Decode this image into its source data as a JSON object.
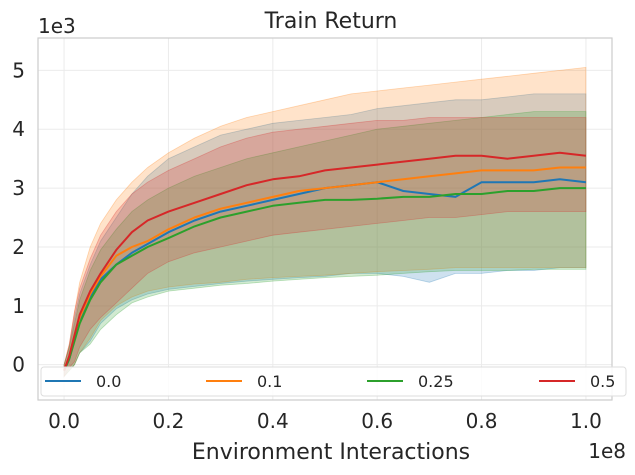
{
  "chart_data": {
    "type": "line",
    "title": "Train Return",
    "xlabel": "Environment Interactions",
    "ylabel": "",
    "x_scale_label": "1e8",
    "y_scale_label": "1e3",
    "xlim": [
      -0.05,
      1.05
    ],
    "ylim": [
      -0.6,
      5.55
    ],
    "xticks": [
      0.0,
      0.2,
      0.4,
      0.6,
      0.8,
      1.0
    ],
    "xtick_labels": [
      "0.0",
      "0.2",
      "0.4",
      "0.6",
      "0.8",
      "1.0"
    ],
    "yticks": [
      0,
      1,
      2,
      3,
      4,
      5
    ],
    "ytick_labels": [
      "0",
      "1",
      "2",
      "3",
      "4",
      "5"
    ],
    "grid": true,
    "legend_position": "bottom",
    "legend_columns": 4,
    "x": [
      0.0,
      0.01,
      0.02,
      0.03,
      0.05,
      0.07,
      0.1,
      0.13,
      0.16,
      0.2,
      0.25,
      0.3,
      0.35,
      0.4,
      0.45,
      0.5,
      0.55,
      0.6,
      0.65,
      0.7,
      0.75,
      0.8,
      0.85,
      0.9,
      0.95,
      1.0
    ],
    "series": [
      {
        "name": "0.0",
        "color": "#1f77b4",
        "values": [
          -0.1,
          0.1,
          0.45,
          0.75,
          1.15,
          1.45,
          1.7,
          1.9,
          2.05,
          2.25,
          2.45,
          2.6,
          2.7,
          2.8,
          2.9,
          3.0,
          3.05,
          3.1,
          2.95,
          2.9,
          2.85,
          3.1,
          3.1,
          3.1,
          3.15,
          3.1
        ],
        "lower": [
          -0.2,
          -0.1,
          0.0,
          0.2,
          0.4,
          0.7,
          0.95,
          1.1,
          1.2,
          1.28,
          1.33,
          1.38,
          1.42,
          1.45,
          1.48,
          1.5,
          1.55,
          1.55,
          1.5,
          1.4,
          1.55,
          1.55,
          1.6,
          1.6,
          1.65,
          1.65
        ],
        "upper": [
          0.0,
          0.3,
          0.8,
          1.2,
          1.7,
          2.1,
          2.5,
          2.9,
          3.2,
          3.5,
          3.7,
          3.9,
          4.0,
          4.1,
          4.15,
          4.2,
          4.25,
          4.35,
          4.4,
          4.45,
          4.5,
          4.5,
          4.55,
          4.6,
          4.6,
          4.6
        ]
      },
      {
        "name": "0.1",
        "color": "#ff7f0e",
        "values": [
          -0.1,
          0.15,
          0.5,
          0.8,
          1.2,
          1.5,
          1.85,
          2.0,
          2.1,
          2.3,
          2.5,
          2.65,
          2.75,
          2.85,
          2.95,
          3.0,
          3.05,
          3.1,
          3.15,
          3.2,
          3.25,
          3.3,
          3.3,
          3.3,
          3.35,
          3.35
        ],
        "lower": [
          -0.2,
          -0.1,
          0.0,
          0.2,
          0.45,
          0.75,
          1.0,
          1.15,
          1.25,
          1.32,
          1.37,
          1.4,
          1.45,
          1.48,
          1.5,
          1.52,
          1.55,
          1.58,
          1.6,
          1.62,
          1.65,
          1.65,
          1.65,
          1.65,
          1.65,
          1.65
        ],
        "upper": [
          0.0,
          0.35,
          0.9,
          1.4,
          2.0,
          2.4,
          2.8,
          3.1,
          3.35,
          3.6,
          3.85,
          4.05,
          4.2,
          4.3,
          4.4,
          4.5,
          4.6,
          4.65,
          4.7,
          4.75,
          4.8,
          4.85,
          4.9,
          4.95,
          5.0,
          5.05
        ]
      },
      {
        "name": "0.25",
        "color": "#2ca02c",
        "values": [
          -0.1,
          0.1,
          0.4,
          0.7,
          1.1,
          1.4,
          1.7,
          1.85,
          2.0,
          2.15,
          2.35,
          2.5,
          2.6,
          2.7,
          2.75,
          2.8,
          2.8,
          2.82,
          2.85,
          2.85,
          2.9,
          2.9,
          2.95,
          2.95,
          3.0,
          3.0
        ],
        "lower": [
          -0.2,
          -0.1,
          0.0,
          0.2,
          0.35,
          0.6,
          0.85,
          1.05,
          1.15,
          1.25,
          1.3,
          1.35,
          1.38,
          1.42,
          1.45,
          1.48,
          1.5,
          1.52,
          1.55,
          1.58,
          1.6,
          1.6,
          1.6,
          1.62,
          1.62,
          1.62
        ],
        "upper": [
          0.0,
          0.3,
          0.7,
          1.1,
          1.6,
          1.95,
          2.3,
          2.6,
          2.8,
          3.0,
          3.2,
          3.35,
          3.5,
          3.6,
          3.7,
          3.8,
          3.9,
          4.0,
          4.05,
          4.1,
          4.15,
          4.2,
          4.25,
          4.3,
          4.3,
          4.3
        ]
      },
      {
        "name": "0.5",
        "color": "#d62728",
        "values": [
          -0.1,
          0.15,
          0.5,
          0.85,
          1.25,
          1.55,
          1.95,
          2.25,
          2.45,
          2.6,
          2.75,
          2.9,
          3.05,
          3.15,
          3.2,
          3.3,
          3.35,
          3.4,
          3.45,
          3.5,
          3.55,
          3.55,
          3.5,
          3.55,
          3.6,
          3.55
        ],
        "lower": [
          -0.2,
          -0.05,
          0.05,
          0.3,
          0.6,
          0.8,
          1.05,
          1.3,
          1.55,
          1.75,
          1.9,
          2.0,
          2.1,
          2.2,
          2.25,
          2.3,
          2.35,
          2.4,
          2.45,
          2.5,
          2.5,
          2.55,
          2.6,
          2.6,
          2.6,
          2.6
        ],
        "upper": [
          0.0,
          0.35,
          0.9,
          1.3,
          1.8,
          2.2,
          2.6,
          2.9,
          3.1,
          3.3,
          3.5,
          3.7,
          3.85,
          3.95,
          4.0,
          4.05,
          4.1,
          4.15,
          4.15,
          4.2,
          4.2,
          4.2,
          4.2,
          4.2,
          4.2,
          4.2
        ]
      }
    ]
  }
}
